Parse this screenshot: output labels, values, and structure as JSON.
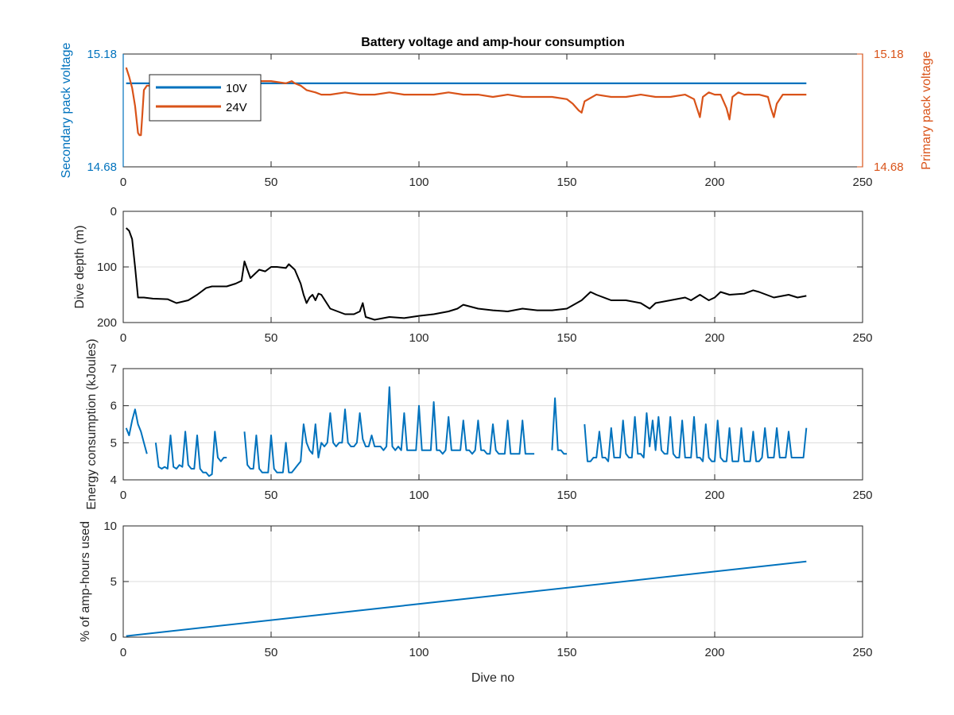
{
  "figure": {
    "background": "#ffffff",
    "axis_color": "#262626",
    "grid_color": "#dcdcdc"
  },
  "chart_data": [
    {
      "type": "line",
      "title": "Battery voltage and amp-hour consumption",
      "xlabel": "",
      "ylabel": "Secondary pack voltage",
      "ylabel_right": "Primary pack voltage",
      "xlim": [
        0,
        250
      ],
      "ylim": [
        14.68,
        15.18
      ],
      "ylim_right": [
        14.68,
        15.18
      ],
      "x_ticks": [
        0,
        50,
        100,
        150,
        200,
        250
      ],
      "y_ticks": [
        "14.68",
        "15.18"
      ],
      "y_ticks_right": [
        "14.68",
        "15.18"
      ],
      "grid": false,
      "legend": {
        "placement": "top-left",
        "entries": [
          "10V",
          "24V"
        ]
      },
      "left_color": "#0072bd",
      "right_color": "#d95319",
      "series": [
        {
          "name": "10V",
          "axis": "left",
          "color": "#0072bd",
          "x": [
            1,
            231
          ],
          "y": [
            15.05,
            15.05
          ]
        },
        {
          "name": "24V",
          "axis": "right",
          "color": "#d95319",
          "x": [
            1,
            2,
            3,
            4,
            5,
            5.5,
            6,
            6.5,
            7,
            8,
            9,
            10,
            12,
            15,
            20,
            25,
            30,
            35,
            40,
            45,
            46,
            50,
            55,
            57,
            58,
            60,
            62,
            65,
            67,
            70,
            75,
            80,
            85,
            90,
            95,
            100,
            105,
            110,
            115,
            120,
            125,
            130,
            135,
            140,
            145,
            150,
            152,
            154,
            155,
            156,
            160,
            165,
            170,
            175,
            180,
            185,
            190,
            193,
            194,
            195,
            196,
            198,
            200,
            202,
            204,
            205,
            206,
            208,
            210,
            215,
            218,
            219,
            220,
            221,
            223,
            225,
            228,
            231
          ],
          "y": [
            15.12,
            15.08,
            15.03,
            14.95,
            14.83,
            14.82,
            14.82,
            14.92,
            15.02,
            15.04,
            15.04,
            15.04,
            15.04,
            15.05,
            15.05,
            15.05,
            15.05,
            15.05,
            15.05,
            15.05,
            15.06,
            15.06,
            15.05,
            15.06,
            15.05,
            15.04,
            15.02,
            15.01,
            15.0,
            15.0,
            15.01,
            15.0,
            15.0,
            15.01,
            15.0,
            15.0,
            15.0,
            15.01,
            15.0,
            15.0,
            14.99,
            15.0,
            14.99,
            14.99,
            14.99,
            14.98,
            14.96,
            14.93,
            14.92,
            14.97,
            15.0,
            14.99,
            14.99,
            15.0,
            14.99,
            14.99,
            15.0,
            14.98,
            14.94,
            14.9,
            14.99,
            15.01,
            15.0,
            15.0,
            14.94,
            14.89,
            14.99,
            15.01,
            15.0,
            15.0,
            14.99,
            14.94,
            14.9,
            14.96,
            15.0,
            15.0,
            15.0,
            15.0
          ]
        }
      ]
    },
    {
      "type": "line",
      "title": "",
      "xlabel": "",
      "ylabel": "Dive depth (m)",
      "xlim": [
        0,
        250
      ],
      "ylim": [
        0,
        200
      ],
      "y_reversed": true,
      "x_ticks": [
        0,
        50,
        100,
        150,
        200,
        250
      ],
      "y_ticks": [
        "0",
        "100",
        "200"
      ],
      "grid": true,
      "series": [
        {
          "color": "#000000",
          "x": [
            1,
            2,
            3,
            4,
            5,
            7,
            10,
            15,
            18,
            22,
            25,
            28,
            30,
            35,
            38,
            40,
            41,
            42,
            43,
            45,
            46,
            48,
            50,
            52,
            55,
            56,
            58,
            60,
            61,
            62,
            63,
            64,
            65,
            66,
            67,
            70,
            75,
            78,
            80,
            81,
            82,
            85,
            90,
            95,
            100,
            105,
            110,
            113,
            115,
            120,
            125,
            130,
            135,
            140,
            145,
            150,
            155,
            158,
            160,
            165,
            170,
            175,
            178,
            180,
            185,
            190,
            192,
            195,
            198,
            200,
            202,
            205,
            210,
            213,
            215,
            220,
            225,
            228,
            231
          ],
          "y": [
            30,
            35,
            50,
            100,
            155,
            155,
            157,
            158,
            165,
            160,
            150,
            138,
            135,
            135,
            130,
            125,
            90,
            105,
            120,
            110,
            105,
            108,
            100,
            100,
            102,
            95,
            105,
            130,
            150,
            165,
            155,
            150,
            160,
            148,
            150,
            175,
            185,
            185,
            180,
            165,
            190,
            195,
            190,
            192,
            188,
            185,
            180,
            175,
            168,
            175,
            178,
            180,
            175,
            178,
            178,
            175,
            160,
            145,
            150,
            160,
            160,
            165,
            175,
            165,
            160,
            155,
            160,
            150,
            160,
            155,
            145,
            150,
            148,
            142,
            145,
            155,
            150,
            155,
            152
          ]
        }
      ]
    },
    {
      "type": "line",
      "title": "",
      "xlabel": "",
      "ylabel": "Energy consumption (kJoules)",
      "xlim": [
        0,
        250
      ],
      "ylim": [
        4,
        7
      ],
      "x_ticks": [
        0,
        50,
        100,
        150,
        200,
        250
      ],
      "y_ticks": [
        "4",
        "5",
        "6",
        "7"
      ],
      "grid": true,
      "series": [
        {
          "color": "#0072bd",
          "segments": [
            {
              "x": [
                1,
                2,
                3,
                4,
                5,
                6,
                7,
                8
              ],
              "y": [
                5.4,
                5.2,
                5.6,
                5.9,
                5.5,
                5.3,
                5.0,
                4.7
              ]
            },
            {
              "x": [
                11,
                12,
                13,
                14,
                15,
                16,
                17,
                18,
                19,
                20,
                21,
                22,
                23,
                24,
                25,
                26,
                27,
                28,
                29,
                30,
                31,
                32,
                33,
                34,
                35
              ],
              "y": [
                5.0,
                4.35,
                4.3,
                4.35,
                4.3,
                5.2,
                4.35,
                4.3,
                4.4,
                4.35,
                5.3,
                4.4,
                4.3,
                4.3,
                5.2,
                4.3,
                4.2,
                4.2,
                4.1,
                4.15,
                5.3,
                4.6,
                4.5,
                4.6,
                4.6
              ]
            },
            {
              "x": [
                41,
                42,
                43,
                44,
                45,
                46,
                47,
                48,
                49,
                50,
                51,
                52,
                53,
                54,
                55,
                56,
                57,
                58,
                59,
                60,
                61,
                62,
                63,
                64,
                65,
                66,
                67,
                68,
                69,
                70,
                71,
                72,
                73,
                74,
                75,
                76,
                77,
                78,
                79,
                80,
                81,
                82,
                83,
                84,
                85,
                86,
                87,
                88,
                89,
                90,
                91,
                92,
                93,
                94,
                95,
                96,
                97,
                98,
                99,
                100,
                101,
                102,
                103,
                104,
                105,
                106,
                107,
                108,
                109,
                110,
                111,
                112,
                113,
                114,
                115,
                116,
                117,
                118,
                119,
                120,
                121,
                122,
                123,
                124,
                125,
                126,
                127,
                128,
                129,
                130,
                131,
                132,
                133,
                134,
                135,
                136,
                137,
                138,
                139
              ],
              "y": [
                5.3,
                4.4,
                4.3,
                4.3,
                5.2,
                4.3,
                4.2,
                4.2,
                4.2,
                5.2,
                4.3,
                4.2,
                4.2,
                4.2,
                5.0,
                4.2,
                4.2,
                4.3,
                4.4,
                4.5,
                5.5,
                5.0,
                4.8,
                4.7,
                5.5,
                4.6,
                5.0,
                4.9,
                5.0,
                5.8,
                5.0,
                4.9,
                5.0,
                5.0,
                5.9,
                5.0,
                4.9,
                4.9,
                5.0,
                5.8,
                5.1,
                4.9,
                4.9,
                5.2,
                4.9,
                4.9,
                4.9,
                4.8,
                4.9,
                6.5,
                4.9,
                4.8,
                4.9,
                4.8,
                5.8,
                4.8,
                4.8,
                4.8,
                4.8,
                6.0,
                4.8,
                4.8,
                4.8,
                4.8,
                6.1,
                4.8,
                4.8,
                4.7,
                4.8,
                5.7,
                4.8,
                4.8,
                4.8,
                4.8,
                5.6,
                4.8,
                4.8,
                4.7,
                4.8,
                5.6,
                4.8,
                4.8,
                4.7,
                4.7,
                5.5,
                4.8,
                4.7,
                4.7,
                4.7,
                5.6,
                4.7,
                4.7,
                4.7,
                4.7,
                5.6,
                4.7,
                4.7,
                4.7,
                4.7
              ]
            },
            {
              "x": [
                145,
                146,
                147,
                148,
                149,
                150
              ],
              "y": [
                4.8,
                6.2,
                4.8,
                4.8,
                4.7,
                4.7
              ]
            },
            {
              "x": [
                156,
                157,
                158,
                159,
                160,
                161,
                162,
                163,
                164,
                165,
                166,
                167,
                168,
                169,
                170,
                171,
                172,
                173,
                174,
                175,
                176,
                177,
                178,
                179,
                180,
                181,
                182,
                183,
                184,
                185,
                186,
                187,
                188,
                189,
                190,
                191,
                192,
                193,
                194,
                195,
                196,
                197,
                198,
                199,
                200,
                201,
                202,
                203,
                204,
                205,
                206,
                207,
                208,
                209,
                210,
                211,
                212,
                213,
                214,
                215,
                216,
                217,
                218,
                219,
                220,
                221,
                222,
                223,
                224,
                225,
                226,
                227,
                228,
                229,
                230,
                231
              ],
              "y": [
                5.5,
                4.5,
                4.5,
                4.6,
                4.6,
                5.3,
                4.6,
                4.6,
                4.5,
                5.4,
                4.6,
                4.6,
                4.6,
                5.6,
                4.7,
                4.6,
                4.6,
                5.7,
                4.7,
                4.7,
                4.6,
                5.8,
                4.9,
                5.6,
                4.8,
                5.7,
                4.8,
                4.7,
                4.7,
                5.7,
                4.7,
                4.6,
                4.6,
                5.6,
                4.6,
                4.6,
                4.6,
                5.7,
                4.6,
                4.6,
                4.5,
                5.5,
                4.6,
                4.5,
                4.5,
                5.6,
                4.6,
                4.5,
                4.5,
                5.4,
                4.5,
                4.5,
                4.5,
                5.4,
                4.5,
                4.5,
                4.5,
                5.3,
                4.5,
                4.5,
                4.6,
                5.4,
                4.6,
                4.6,
                4.6,
                5.4,
                4.6,
                4.6,
                4.6,
                5.3,
                4.6,
                4.6,
                4.6,
                4.6,
                4.6,
                5.4
              ]
            }
          ]
        }
      ]
    },
    {
      "type": "line",
      "title": "",
      "xlabel": "Dive no",
      "ylabel": "% of amp-hours used",
      "xlim": [
        0,
        250
      ],
      "ylim": [
        0,
        10
      ],
      "x_ticks": [
        0,
        50,
        100,
        150,
        200,
        250
      ],
      "y_ticks": [
        "0",
        "5",
        "10"
      ],
      "grid": true,
      "series": [
        {
          "color": "#0072bd",
          "x": [
            1,
            231
          ],
          "y": [
            0.1,
            6.8
          ]
        }
      ]
    }
  ]
}
